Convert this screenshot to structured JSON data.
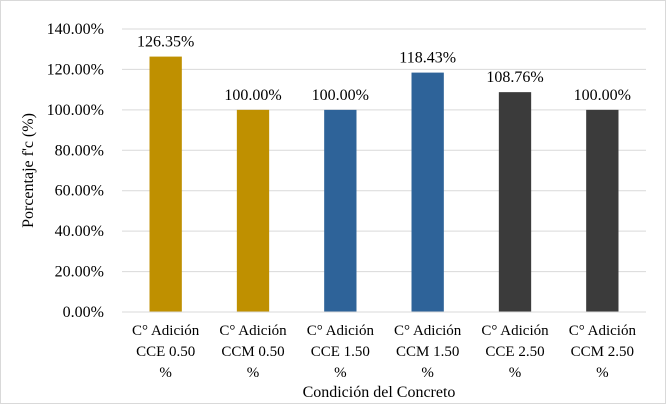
{
  "chart_data": {
    "type": "bar",
    "categories": [
      [
        "C° Adición",
        "CCE 0.50",
        "%"
      ],
      [
        "C° Adición",
        "CCM 0.50",
        "%"
      ],
      [
        "C° Adición",
        "CCE 1.50",
        "%"
      ],
      [
        "C° Adición",
        "CCM 1.50",
        "%"
      ],
      [
        "C° Adición",
        "CCE 2.50",
        "%"
      ],
      [
        "C° Adición",
        "CCM 2.50",
        "%"
      ]
    ],
    "values": [
      126.35,
      100.0,
      100.0,
      118.43,
      108.76,
      100.0
    ],
    "data_labels": [
      "126.35%",
      "100.00%",
      "100.00%",
      "118.43%",
      "108.76%",
      "100.00%"
    ],
    "bar_colors": [
      "#bf9000",
      "#bf9000",
      "#2e6399",
      "#2e6399",
      "#3b3b3b",
      "#3b3b3b"
    ],
    "title": "",
    "xlabel": "Condición del Concreto",
    "ylabel": "Porcentaje f'c (%)",
    "ylim": [
      0,
      140
    ],
    "yticks": [
      "0.00%",
      "20.00%",
      "40.00%",
      "60.00%",
      "80.00%",
      "100.00%",
      "120.00%",
      "140.00%"
    ],
    "grid": true,
    "legend": "none"
  }
}
